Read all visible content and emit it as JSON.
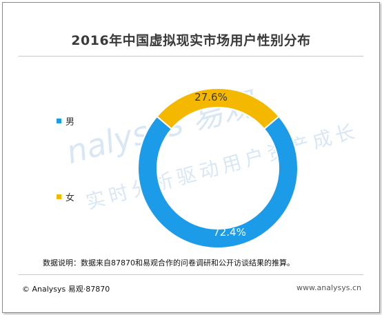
{
  "header": {
    "title": "2016年中国虚拟现实市场用户性别分布"
  },
  "colors": {
    "male": "#1c9be8",
    "female": "#f5b800",
    "frame": "#8a8a8a"
  },
  "chart_data": {
    "type": "pie",
    "variant": "donut",
    "title": "2016年中国虚拟现实市场用户性别分布",
    "categories": [
      "男",
      "女"
    ],
    "values": [
      72.4,
      27.6
    ],
    "labels": [
      "72.4%",
      "27.6%"
    ],
    "legend_position": "left"
  },
  "legend": {
    "items": [
      {
        "label": "男"
      },
      {
        "label": "女"
      }
    ]
  },
  "footer": {
    "note": "数据说明：数据来自87870和易观合作的问卷调研和公开访谈结果的推算。",
    "copyright": "© Analysys 易观·87870",
    "site": "www.analysys.cn"
  },
  "watermark": {
    "brand": "nalysys 易观",
    "slogan": "实时分析驱动用户资产成长"
  }
}
